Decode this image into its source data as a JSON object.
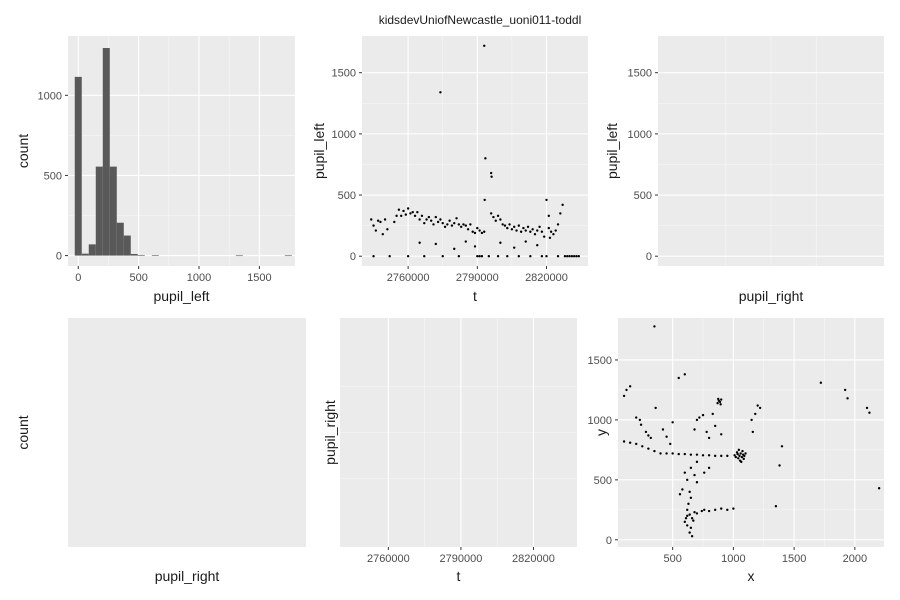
{
  "figure": {
    "title": "kidsdevUniofNewcastle_uoni011-toddl"
  },
  "colors": {
    "panel": "#ebebeb",
    "grid": "#ffffff",
    "bar": "#595959",
    "point": "#000000"
  },
  "chart_data": [
    {
      "id": "p1",
      "type": "bar",
      "xlabel": "pupil_left",
      "ylabel": "count",
      "x_ticks": [
        0,
        500,
        1000,
        1500
      ],
      "y_ticks": [
        0,
        500,
        1000
      ],
      "xlim": [
        -85,
        1795
      ],
      "ylim": [
        -65,
        1370
      ],
      "bin_width": 58,
      "bins": [
        {
          "x": 0,
          "count": 1115
        },
        {
          "x": 58,
          "count": 12
        },
        {
          "x": 116,
          "count": 70
        },
        {
          "x": 174,
          "count": 555
        },
        {
          "x": 232,
          "count": 1295
        },
        {
          "x": 290,
          "count": 555
        },
        {
          "x": 348,
          "count": 205
        },
        {
          "x": 406,
          "count": 125
        },
        {
          "x": 464,
          "count": 10
        },
        {
          "x": 522,
          "count": 2
        },
        {
          "x": 638,
          "count": 3
        },
        {
          "x": 1334,
          "count": 1
        },
        {
          "x": 1740,
          "count": 1
        }
      ]
    },
    {
      "id": "p2",
      "type": "scatter",
      "xlabel": "t",
      "ylabel": "pupil_left",
      "x_ticks": [
        2760000,
        2790000,
        2820000
      ],
      "x_tick_labels": [
        "2760000",
        "2790000",
        "2820000"
      ],
      "y_ticks": [
        0,
        500,
        1000,
        1500
      ],
      "xlim": [
        2740000,
        2838000
      ],
      "ylim": [
        -80,
        1800
      ],
      "points": [
        [
          2744000,
          300
        ],
        [
          2745000,
          250
        ],
        [
          2746000,
          210
        ],
        [
          2747000,
          290
        ],
        [
          2748000,
          280
        ],
        [
          2749000,
          180
        ],
        [
          2750000,
          300
        ],
        [
          2751000,
          220
        ],
        [
          2754000,
          280
        ],
        [
          2755000,
          330
        ],
        [
          2756000,
          380
        ],
        [
          2757000,
          330
        ],
        [
          2758000,
          370
        ],
        [
          2759000,
          340
        ],
        [
          2760000,
          390
        ],
        [
          2761000,
          350
        ],
        [
          2762000,
          360
        ],
        [
          2763000,
          330
        ],
        [
          2764000,
          360
        ],
        [
          2765000,
          300
        ],
        [
          2766000,
          330
        ],
        [
          2767000,
          270
        ],
        [
          2768000,
          300
        ],
        [
          2769000,
          320
        ],
        [
          2770000,
          290
        ],
        [
          2771000,
          260
        ],
        [
          2772000,
          320
        ],
        [
          2773000,
          280
        ],
        [
          2774000,
          300
        ],
        [
          2775000,
          270
        ],
        [
          2776000,
          240
        ],
        [
          2777000,
          260
        ],
        [
          2778000,
          290
        ],
        [
          2779000,
          250
        ],
        [
          2780000,
          270
        ],
        [
          2781000,
          310
        ],
        [
          2782000,
          260
        ],
        [
          2783000,
          240
        ],
        [
          2784000,
          260
        ],
        [
          2785000,
          250
        ],
        [
          2786000,
          220
        ],
        [
          2787000,
          260
        ],
        [
          2788000,
          200
        ],
        [
          2789000,
          190
        ],
        [
          2790000,
          230
        ],
        [
          2791000,
          210
        ],
        [
          2792000,
          190
        ],
        [
          2793000,
          200
        ],
        [
          2796000,
          350
        ],
        [
          2797000,
          320
        ],
        [
          2798000,
          290
        ],
        [
          2799000,
          330
        ],
        [
          2800000,
          300
        ],
        [
          2801000,
          260
        ],
        [
          2802000,
          250
        ],
        [
          2803000,
          230
        ],
        [
          2804000,
          260
        ],
        [
          2805000,
          220
        ],
        [
          2806000,
          240
        ],
        [
          2807000,
          210
        ],
        [
          2808000,
          250
        ],
        [
          2809000,
          200
        ],
        [
          2810000,
          230
        ],
        [
          2811000,
          210
        ],
        [
          2812000,
          240
        ],
        [
          2813000,
          200
        ],
        [
          2814000,
          220
        ],
        [
          2815000,
          180
        ],
        [
          2816000,
          210
        ],
        [
          2817000,
          240
        ],
        [
          2818000,
          200
        ],
        [
          2819000,
          160
        ],
        [
          2821000,
          230
        ],
        [
          2822000,
          200
        ],
        [
          2823000,
          180
        ],
        [
          2824000,
          210
        ],
        [
          2825000,
          260
        ],
        [
          2826000,
          350
        ],
        [
          2827000,
          420
        ],
        [
          2774000,
          1340
        ],
        [
          2793000,
          1720
        ],
        [
          2793500,
          800
        ],
        [
          2796000,
          680
        ],
        [
          2796200,
          650
        ],
        [
          2793200,
          460
        ],
        [
          2820000,
          460
        ],
        [
          2821000,
          330
        ],
        [
          2821500,
          150
        ],
        [
          2745000,
          0
        ],
        [
          2752000,
          0
        ],
        [
          2760000,
          0
        ],
        [
          2767000,
          0
        ],
        [
          2775000,
          0
        ],
        [
          2782000,
          0
        ],
        [
          2790000,
          0
        ],
        [
          2791000,
          0
        ],
        [
          2792000,
          0
        ],
        [
          2795000,
          0
        ],
        [
          2799000,
          0
        ],
        [
          2803000,
          0
        ],
        [
          2808000,
          0
        ],
        [
          2813000,
          0
        ],
        [
          2818000,
          0
        ],
        [
          2820000,
          0
        ],
        [
          2825000,
          0
        ],
        [
          2828000,
          0
        ],
        [
          2829000,
          0
        ],
        [
          2830000,
          0
        ],
        [
          2831000,
          0
        ],
        [
          2832000,
          0
        ],
        [
          2833000,
          0
        ],
        [
          2834000,
          0
        ],
        [
          2765000,
          110
        ],
        [
          2772000,
          100
        ],
        [
          2780000,
          60
        ],
        [
          2785000,
          120
        ],
        [
          2789000,
          80
        ],
        [
          2800000,
          110
        ],
        [
          2806000,
          70
        ],
        [
          2811000,
          120
        ],
        [
          2816000,
          90
        ]
      ]
    },
    {
      "id": "p3",
      "type": "scatter",
      "xlabel": "pupil_right",
      "ylabel": "pupil_left",
      "x_ticks": [],
      "y_ticks": [
        0,
        500,
        1000,
        1500
      ],
      "ylim": [
        -80,
        1800
      ],
      "points": []
    },
    {
      "id": "p4",
      "type": "bar",
      "xlabel": "pupil_right",
      "ylabel": "count",
      "x_ticks": [],
      "y_ticks": [],
      "bins": []
    },
    {
      "id": "p5",
      "type": "scatter",
      "xlabel": "t",
      "ylabel": "pupil_right",
      "x_ticks": [
        2760000,
        2790000,
        2820000
      ],
      "x_tick_labels": [
        "2760000",
        "2790000",
        "2820000"
      ],
      "y_ticks": [],
      "xlim": [
        2740000,
        2838000
      ],
      "points": []
    },
    {
      "id": "p6",
      "type": "scatter",
      "xlabel": "x",
      "ylabel": "y",
      "x_ticks": [
        500,
        1000,
        1500,
        2000
      ],
      "y_ticks": [
        0,
        500,
        1000,
        1500
      ],
      "xlim": [
        50,
        2240
      ],
      "ylim": [
        -60,
        1850
      ],
      "points": [
        [
          1050,
          700
        ],
        [
          1060,
          720
        ],
        [
          1040,
          680
        ],
        [
          1070,
          690
        ],
        [
          1080,
          710
        ],
        [
          1030,
          730
        ],
        [
          1090,
          700
        ],
        [
          1020,
          690
        ],
        [
          1055,
          660
        ],
        [
          1075,
          740
        ],
        [
          1100,
          720
        ],
        [
          1010,
          705
        ],
        [
          1045,
          750
        ],
        [
          1065,
          650
        ],
        [
          1035,
          715
        ],
        [
          1085,
          675
        ],
        [
          880,
          1160
        ],
        [
          890,
          1150
        ],
        [
          870,
          1140
        ],
        [
          900,
          1170
        ],
        [
          895,
          1130
        ],
        [
          875,
          1175
        ],
        [
          620,
          200
        ],
        [
          640,
          210
        ],
        [
          660,
          180
        ],
        [
          600,
          150
        ],
        [
          680,
          230
        ],
        [
          700,
          220
        ],
        [
          740,
          240
        ],
        [
          760,
          250
        ],
        [
          800,
          240
        ],
        [
          850,
          250
        ],
        [
          900,
          260
        ],
        [
          950,
          250
        ],
        [
          1000,
          260
        ],
        [
          620,
          120
        ],
        [
          650,
          100
        ],
        [
          640,
          60
        ],
        [
          660,
          30
        ],
        [
          630,
          300
        ],
        [
          640,
          400
        ],
        [
          650,
          350
        ],
        [
          620,
          250
        ],
        [
          610,
          180
        ],
        [
          670,
          160
        ],
        [
          100,
          820
        ],
        [
          150,
          810
        ],
        [
          200,
          800
        ],
        [
          250,
          780
        ],
        [
          300,
          760
        ],
        [
          350,
          740
        ],
        [
          400,
          720
        ],
        [
          450,
          720
        ],
        [
          500,
          720
        ],
        [
          550,
          715
        ],
        [
          600,
          715
        ],
        [
          650,
          710
        ],
        [
          700,
          710
        ],
        [
          750,
          705
        ],
        [
          800,
          705
        ],
        [
          850,
          700
        ],
        [
          900,
          700
        ],
        [
          950,
          700
        ],
        [
          100,
          1200
        ],
        [
          120,
          1250
        ],
        [
          150,
          1280
        ],
        [
          200,
          1020
        ],
        [
          230,
          1000
        ],
        [
          240,
          960
        ],
        [
          280,
          900
        ],
        [
          300,
          870
        ],
        [
          320,
          850
        ],
        [
          360,
          1100
        ],
        [
          420,
          920
        ],
        [
          450,
          860
        ],
        [
          480,
          800
        ],
        [
          500,
          980
        ],
        [
          550,
          1350
        ],
        [
          600,
          1380
        ],
        [
          680,
          920
        ],
        [
          700,
          1000
        ],
        [
          720,
          1020
        ],
        [
          750,
          1040
        ],
        [
          780,
          900
        ],
        [
          800,
          850
        ],
        [
          830,
          1050
        ],
        [
          850,
          950
        ],
        [
          900,
          880
        ],
        [
          1150,
          1000
        ],
        [
          1160,
          900
        ],
        [
          1180,
          1050
        ],
        [
          1200,
          1120
        ],
        [
          1220,
          1100
        ],
        [
          1400,
          780
        ],
        [
          1380,
          620
        ],
        [
          1350,
          280
        ],
        [
          1720,
          1310
        ],
        [
          1920,
          1250
        ],
        [
          1940,
          1180
        ],
        [
          2100,
          1100
        ],
        [
          2120,
          1060
        ],
        [
          2200,
          430
        ],
        [
          350,
          1780
        ],
        [
          600,
          560
        ],
        [
          620,
          500
        ],
        [
          650,
          600
        ],
        [
          700,
          650
        ],
        [
          760,
          560
        ],
        [
          800,
          600
        ],
        [
          580,
          420
        ],
        [
          560,
          380
        ],
        [
          700,
          480
        ],
        [
          680,
          540
        ]
      ]
    }
  ]
}
